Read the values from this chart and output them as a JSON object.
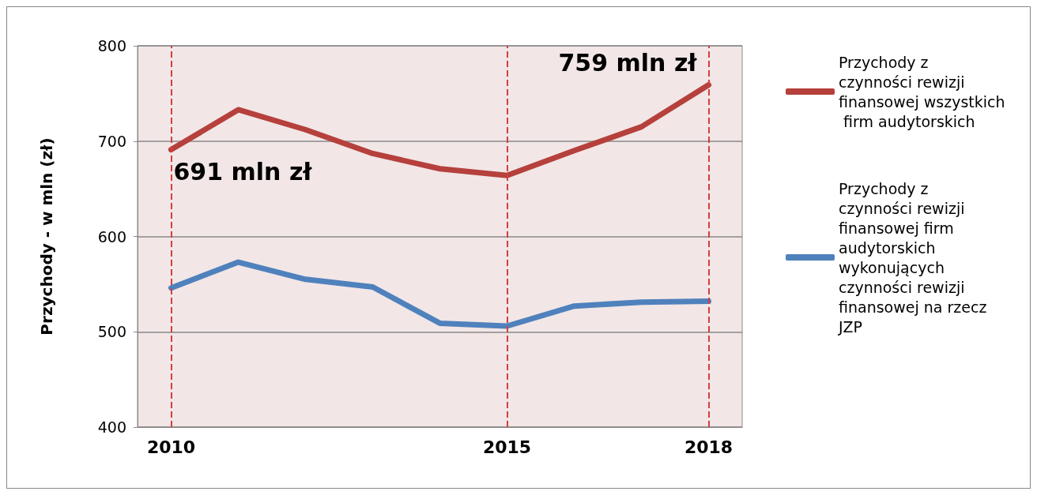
{
  "chart_data": {
    "type": "line",
    "ylabel": "Przychody - w mln (zł)",
    "categories": [
      "2010",
      null,
      null,
      null,
      null,
      "2015",
      null,
      null,
      "2018"
    ],
    "series": [
      {
        "name": "Przychody z czynności rewizji finansowej wszystkich firm audytorskich",
        "color": "#b5403c",
        "values": [
          691,
          733,
          712,
          687,
          671,
          664,
          690,
          715,
          759
        ]
      },
      {
        "name": "Przychody z czynności rewizji finansowej firm audytorskich wykonujących czynności rewizji finansowej na rzecz JZP",
        "color": "#4f81bd",
        "values": [
          546,
          573,
          555,
          547,
          509,
          506,
          527,
          531,
          532
        ]
      }
    ],
    "ylim": [
      400,
      800
    ],
    "yticks": [
      400,
      500,
      600,
      700,
      800
    ],
    "grid": "y",
    "legend": "right",
    "marker": "none",
    "line_style": "solid",
    "ref_lines": [
      {
        "axis": "x",
        "value": "2010",
        "color": "#d04040",
        "line_style": "dashed"
      },
      {
        "axis": "x",
        "value": "2015",
        "color": "#d04040",
        "line_style": "dashed"
      },
      {
        "axis": "x",
        "value": "2018",
        "color": "#d04040",
        "line_style": "dashed"
      }
    ],
    "annotations": [
      {
        "text": "691 mln zł",
        "x": "2010",
        "y": 691
      },
      {
        "text": "759 mln zł",
        "x": "2018",
        "y": 759
      }
    ]
  }
}
